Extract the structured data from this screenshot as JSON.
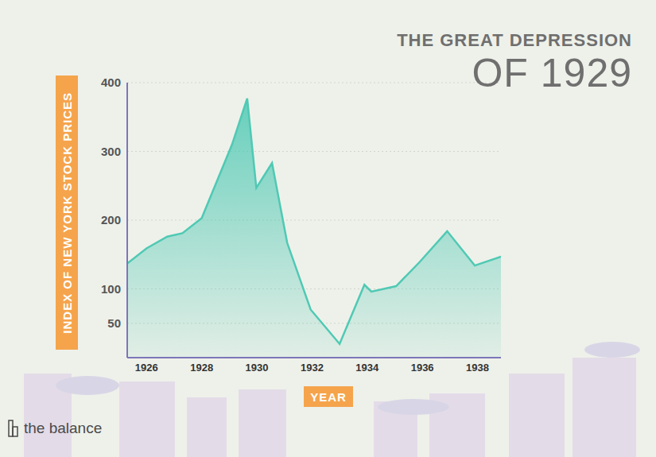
{
  "chart_data": {
    "type": "area",
    "title": "THE GREAT DEPRESSION",
    "subtitle": "OF 1929",
    "x_label": "YEAR",
    "y_label": "INDEX OF NEW YORK STOCK PRICES",
    "annotations": [
      "the balance"
    ],
    "x": [
      1925.3,
      1926,
      1926.75,
      1927.3,
      1928,
      1929.1,
      1929.65,
      1929.98,
      1930.55,
      1931.1,
      1931.95,
      1933.0,
      1933.9,
      1934.15,
      1935.05,
      1935.9,
      1936.9,
      1937.9,
      1938.85
    ],
    "values": [
      137,
      159,
      176,
      181,
      203,
      310,
      377,
      247,
      283,
      167,
      70,
      20,
      106,
      96,
      104,
      139,
      184,
      134,
      147
    ],
    "color": "#4fc9b4",
    "xlim": [
      1925.3,
      1938.85
    ],
    "xticks": [
      1926,
      1928,
      1930,
      1932,
      1934,
      1936,
      1938
    ],
    "ylim": [
      0,
      400
    ],
    "yticks": [
      50,
      100,
      200,
      300,
      400
    ],
    "grid": true
  }
}
